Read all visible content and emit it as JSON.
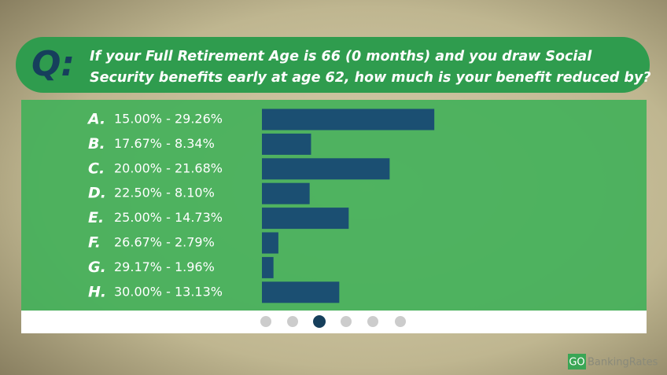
{
  "chart_data": {
    "type": "hbar",
    "prefix": "Q:",
    "title": [
      "If your Full Retirement Age is 66 (0 months) and you draw Social",
      "Security benefits early at age 62, how much is your benefit reduced by?"
    ],
    "letters": [
      "A.",
      "B.",
      "C.",
      "D.",
      "E.",
      "F.",
      "G.",
      "H."
    ],
    "categories": [
      "15.00% - 29.26%",
      "17.67% - 8.34%",
      "20.00% - 21.68%",
      "22.50% - 8.10%",
      "25.00% - 14.73%",
      "26.67% - 2.79%",
      "29.17% - 1.96%",
      "30.00% - 13.13%"
    ],
    "values": [
      29.26,
      8.34,
      21.68,
      8.1,
      14.73,
      2.79,
      1.96,
      13.13
    ],
    "color": "#1b4f72"
  },
  "logo": {
    "box": "GO",
    "text": "BankingRates"
  }
}
